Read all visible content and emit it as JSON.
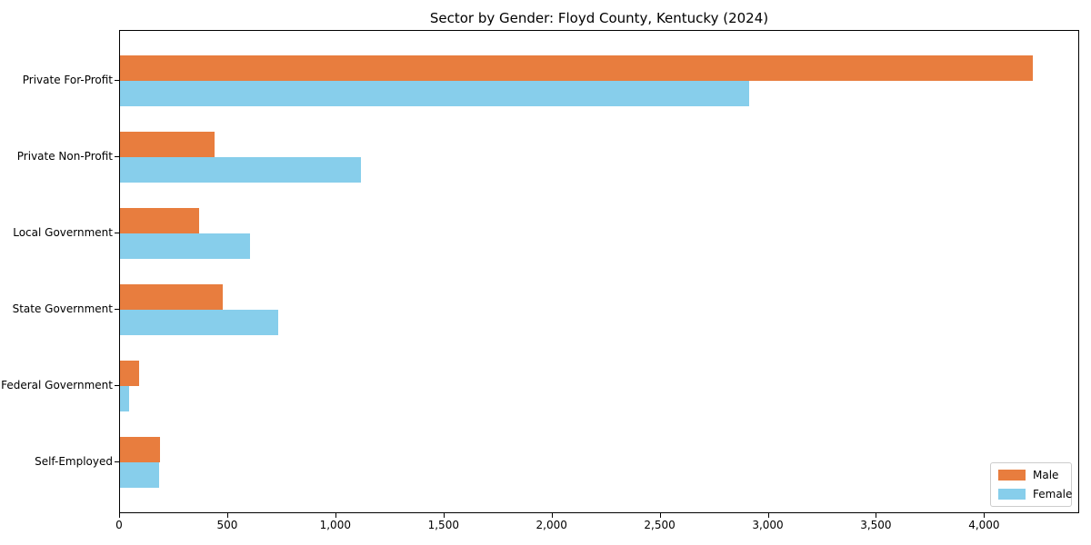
{
  "chart_data": {
    "type": "bar",
    "orientation": "horizontal",
    "title": "Sector by Gender: Floyd County, Kentucky (2024)",
    "categories": [
      "Private For-Profit",
      "Private Non-Profit",
      "Local Government",
      "State Government",
      "Federal Government",
      "Self-Employed"
    ],
    "series": [
      {
        "name": "Male",
        "color": "#e87d3e",
        "values": [
          4220,
          435,
          365,
          475,
          88,
          185
        ]
      },
      {
        "name": "Female",
        "color": "#87ceeb",
        "values": [
          2910,
          1115,
          600,
          730,
          40,
          180
        ]
      }
    ],
    "xlabel": "",
    "ylabel": "",
    "xlim": [
      0,
      4440
    ],
    "xticks": [
      0,
      500,
      1000,
      1500,
      2000,
      2500,
      3000,
      3500,
      4000
    ],
    "xtick_labels": [
      "0",
      "500",
      "1,000",
      "1,500",
      "2,000",
      "2,500",
      "3,000",
      "3,500",
      "4,000"
    ],
    "grid": false,
    "legend": {
      "position": "lower right"
    },
    "colors": {
      "axis": "#000000",
      "legend_border": "#cccccc",
      "background": "#ffffff"
    }
  }
}
